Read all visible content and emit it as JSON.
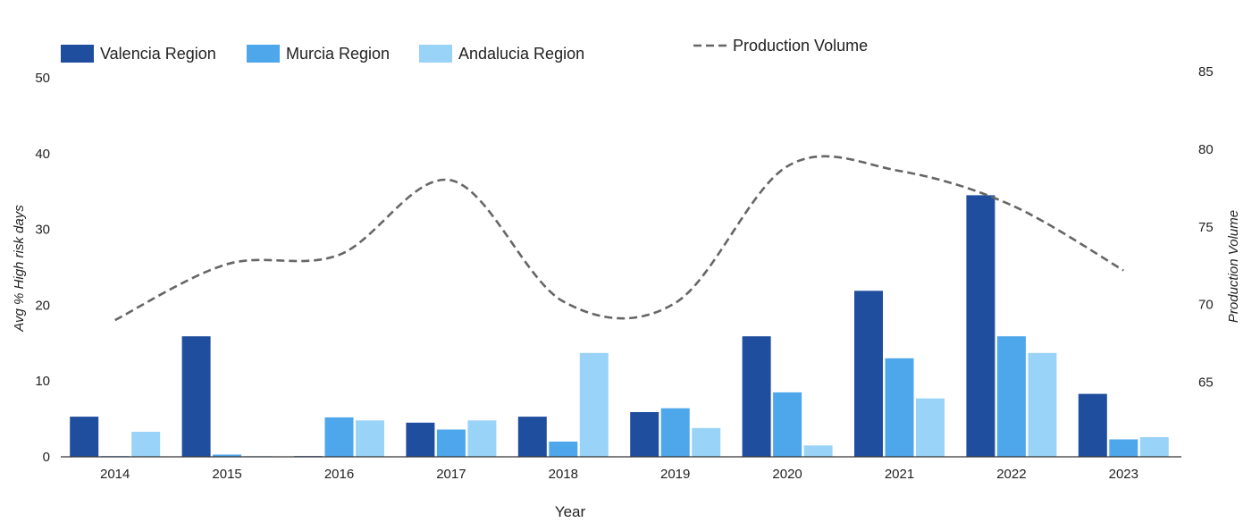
{
  "chart_data": {
    "type": "bar",
    "categories": [
      "2014",
      "2015",
      "2016",
      "2017",
      "2018",
      "2019",
      "2020",
      "2021",
      "2022",
      "2023"
    ],
    "series": [
      {
        "name": "Valencia Region",
        "type": "bar",
        "axis": "left",
        "color": "#1f4e9e",
        "values": [
          5.3,
          15.9,
          0.1,
          4.5,
          5.3,
          5.9,
          15.9,
          21.9,
          34.5,
          8.3
        ]
      },
      {
        "name": "Murcia Region",
        "type": "bar",
        "axis": "left",
        "color": "#4ea6eb",
        "values": [
          0.1,
          0.3,
          5.2,
          3.6,
          2.0,
          6.4,
          8.5,
          13.0,
          15.9,
          2.3
        ]
      },
      {
        "name": "Andalucia Region",
        "type": "bar",
        "axis": "left",
        "color": "#99d3f7",
        "values": [
          3.3,
          0.1,
          4.8,
          4.8,
          13.7,
          3.8,
          1.5,
          7.7,
          13.7,
          2.6
        ]
      },
      {
        "name": "Production Volume",
        "type": "line",
        "axis": "right",
        "color": "#666666",
        "dashed": true,
        "values": [
          69.0,
          72.6,
          73.2,
          78.0,
          70.2,
          70.1,
          78.9,
          78.6,
          76.4,
          72.2
        ]
      }
    ],
    "xlabel": "Year",
    "ylabel": "Avg % High risk days",
    "ylabel_right": "Production Volume",
    "ylim": [
      0,
      50
    ],
    "yticks": [
      "0",
      "10",
      "20",
      "30",
      "40",
      "50"
    ],
    "ylim_right": [
      60.2,
      85
    ],
    "yticks_right": [
      "65",
      "70",
      "75",
      "80",
      "85"
    ],
    "grid": false,
    "legend_position": "top"
  }
}
